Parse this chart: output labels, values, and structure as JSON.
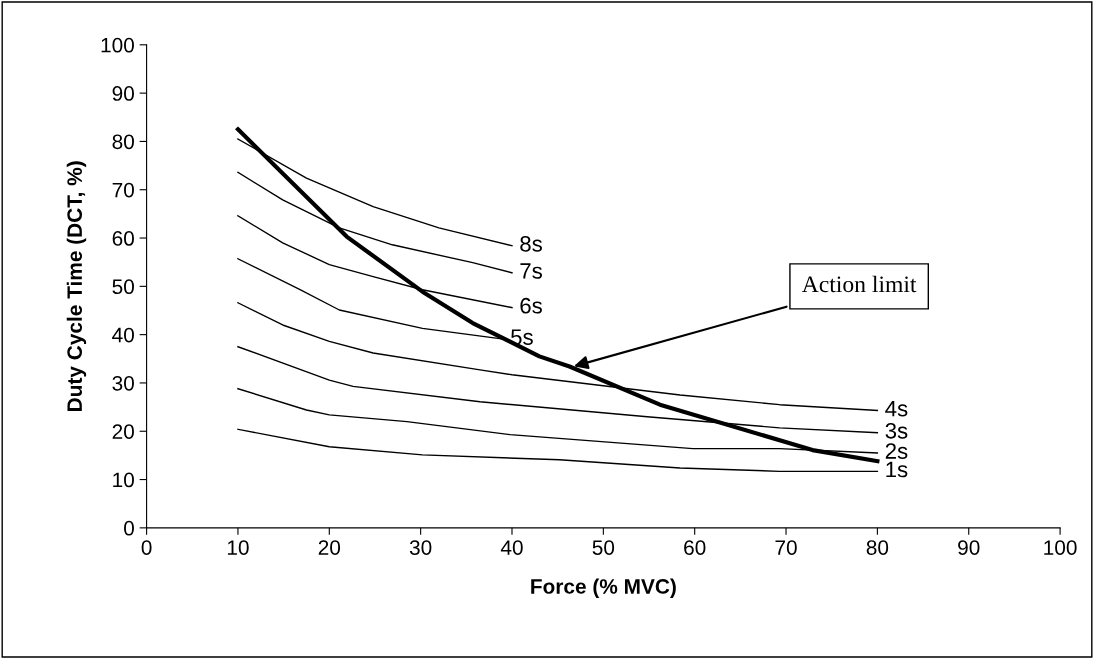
{
  "chart_data": {
    "type": "line",
    "xlabel": "Force (% MVC)",
    "ylabel": "Duty Cycle Time (DCT, %)",
    "xlim": [
      0,
      100
    ],
    "xticks": [
      0,
      10,
      20,
      30,
      40,
      50,
      60,
      70,
      80,
      90,
      100
    ],
    "ylim": [
      0,
      100
    ],
    "yticks": [
      0,
      10,
      20,
      30,
      40,
      50,
      60,
      70,
      80,
      90,
      100
    ],
    "grid": false,
    "legend": false,
    "marker": "none",
    "line_style": "solid",
    "series": [
      {
        "name": "8s",
        "color": "#000000",
        "x": [
          10,
          17.5,
          24.8,
          32,
          40
        ],
        "values": [
          80.5,
          72.4,
          66.5,
          62.1,
          58.4
        ]
      },
      {
        "name": "7s",
        "color": "#000000",
        "x": [
          10,
          14.9,
          21.1,
          26.9,
          35.7,
          40
        ],
        "values": [
          73.6,
          67.9,
          62.1,
          58.6,
          54.9,
          52.8
        ]
      },
      {
        "name": "6s",
        "color": "#000000",
        "x": [
          10,
          14.9,
          20,
          24.8,
          30.2,
          40
        ],
        "values": [
          64.6,
          59,
          54.5,
          52,
          49.3,
          45.6
        ]
      },
      {
        "name": "5s",
        "color": "#000000",
        "x": [
          10,
          16.8,
          21.1,
          30.2,
          39
        ],
        "values": [
          55.7,
          49.3,
          45.1,
          41.3,
          39.1
        ]
      },
      {
        "name": "4s",
        "color": "#000000",
        "x": [
          10,
          14.9,
          20,
          24.8,
          36.5,
          40,
          58.4,
          69.3,
          80
        ],
        "values": [
          46.6,
          42,
          38.6,
          36.2,
          32.7,
          31.7,
          27.5,
          25.5,
          24.3
        ]
      },
      {
        "name": "3s",
        "color": "#000000",
        "x": [
          10,
          20,
          22.6,
          36.5,
          54.8,
          69.3,
          80
        ],
        "values": [
          37.5,
          30.6,
          29.3,
          26.1,
          23,
          20.7,
          19.7
        ]
      },
      {
        "name": "2s",
        "color": "#000000",
        "x": [
          10,
          17.5,
          20,
          28.5,
          39.8,
          59.8,
          69.3,
          80
        ],
        "values": [
          28.8,
          24.4,
          23.4,
          22,
          19.3,
          16.4,
          16.4,
          15.5
        ]
      },
      {
        "name": "1s",
        "color": "#000000",
        "x": [
          10,
          20,
          30.2,
          45.2,
          58.4,
          69.3,
          80
        ],
        "values": [
          20.4,
          16.8,
          15.1,
          14.1,
          12.4,
          11.7,
          11.7
        ]
      },
      {
        "color": "#000000",
        "x": [
          10,
          21.9,
          30.2,
          35.7,
          43,
          46.3,
          56.2,
          72.9,
          80
        ],
        "values": [
          82.5,
          60.3,
          48.9,
          42.4,
          35.5,
          33.4,
          25.5,
          16.1,
          13.8
        ]
      }
    ],
    "annotations": [
      {
        "text": "Action limit",
        "x": 46.5,
        "y": 33.3
      }
    ]
  }
}
